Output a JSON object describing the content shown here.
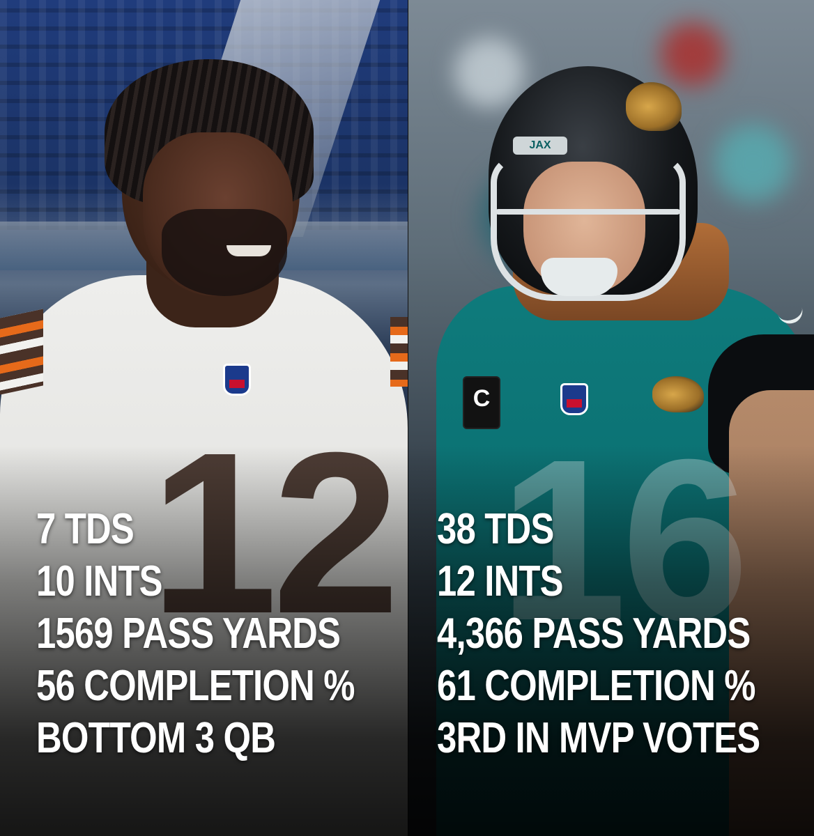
{
  "left_player": {
    "jersey_number": "12",
    "stats": [
      "7 TDS",
      "10 INTS",
      "1569 PASS YARDS",
      "56 COMPLETION %",
      "BOTTOM 3 QB"
    ]
  },
  "right_player": {
    "jersey_number": "16",
    "helmet_text": "JAX",
    "captain_patch": "C",
    "stats": [
      "38 TDS",
      "12 INTS",
      "4,366 PASS YARDS",
      "61 COMPLETION %",
      "3RD IN MVP VOTES"
    ]
  },
  "colors": {
    "left_jersey": "#eeeeec",
    "left_trim_brown": "#3d2a22",
    "left_trim_orange": "#e66a1a",
    "right_jersey": "#0e7b7c",
    "right_trim_gold": "#d7a64a",
    "stat_text": "#ffffff"
  }
}
